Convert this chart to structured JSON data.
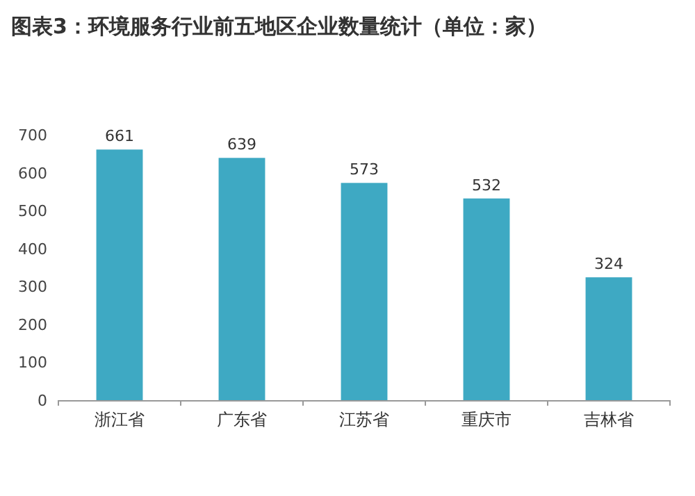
{
  "chart_data": {
    "type": "bar",
    "title": "图表3：环境服务行业前五地区企业数量统计（单位：家）",
    "categories": [
      "浙江省",
      "广东省",
      "江苏省",
      "重庆市",
      "吉林省"
    ],
    "values": [
      661,
      639,
      573,
      532,
      324
    ],
    "color": "#3ea9c3",
    "ylim": [
      0,
      700
    ],
    "yticks": [
      0,
      100,
      200,
      300,
      400,
      500,
      600,
      700
    ],
    "data_labels": true
  }
}
